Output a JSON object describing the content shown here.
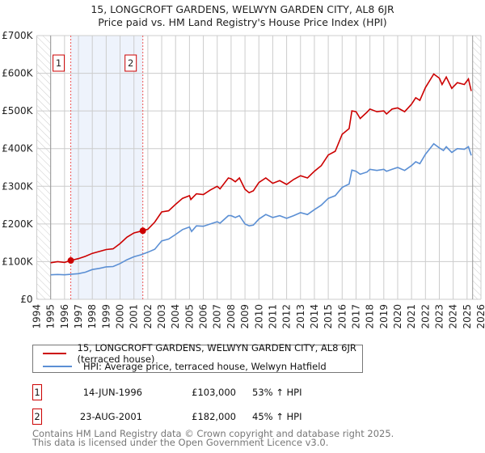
{
  "title_line1": "15, LONGCROFT GARDENS, WELWYN GARDEN CITY, AL8 6JR",
  "title_line2": "Price paid vs. HM Land Registry's House Price Index (HPI)",
  "colors": {
    "property": "#cc0000",
    "hpi": "#5b8fd4",
    "shade": "#eef3fc",
    "grid": "#cccccc"
  },
  "chart_data": {
    "type": "line",
    "title": "15, LONGCROFT GARDENS, WELWYN GARDEN CITY, AL8 6JR — Price paid vs. HM Land Registry's House Price Index (HPI)",
    "xlim": [
      1994,
      2026
    ],
    "ylim": [
      0,
      700000
    ],
    "grid": true,
    "x_ticks": [
      "1994",
      "1995",
      "1996",
      "1997",
      "1998",
      "1999",
      "2000",
      "2001",
      "2002",
      "2003",
      "2004",
      "2005",
      "2006",
      "2007",
      "2008",
      "2009",
      "2010",
      "2011",
      "2012",
      "2013",
      "2014",
      "2015",
      "2016",
      "2017",
      "2018",
      "2019",
      "2020",
      "2021",
      "2022",
      "2023",
      "2024",
      "2025",
      "2026"
    ],
    "y_ticks": [
      {
        "v": 0,
        "label": "£0"
      },
      {
        "v": 100000,
        "label": "£100K"
      },
      {
        "v": 200000,
        "label": "£200K"
      },
      {
        "v": 300000,
        "label": "£300K"
      },
      {
        "v": 400000,
        "label": "£400K"
      },
      {
        "v": 500000,
        "label": "£500K"
      },
      {
        "v": 600000,
        "label": "£600K"
      },
      {
        "v": 700000,
        "label": "£700K"
      }
    ],
    "hatched_ranges": [
      [
        1994,
        1995
      ],
      [
        2025.4,
        2026
      ]
    ],
    "shaded_range": [
      1996.45,
      2001.64
    ],
    "sales": [
      {
        "id": "1",
        "x": 1996.45,
        "y": 103000
      },
      {
        "id": "2",
        "x": 2001.64,
        "y": 182000
      }
    ],
    "series": [
      {
        "name": "15, LONGCROFT GARDENS, WELWYN GARDEN CITY, AL8 6JR (terraced house)",
        "color": "#cc0000",
        "x": [
          1995,
          1995.5,
          1996,
          1996.45,
          1997,
          1997.5,
          1998,
          1998.5,
          1999,
          1999.5,
          2000,
          2000.5,
          2001,
          2001.64,
          2002,
          2002.5,
          2003,
          2003.5,
          2004,
          2004.5,
          2005,
          2005.1,
          2005.5,
          2006,
          2006.5,
          2007,
          2007.2,
          2007.8,
          2008,
          2008.3,
          2008.6,
          2009,
          2009.3,
          2009.6,
          2010,
          2010.5,
          2011,
          2011.5,
          2012,
          2012.5,
          2013,
          2013.5,
          2014,
          2014.5,
          2015,
          2015.5,
          2016,
          2016.5,
          2016.7,
          2017,
          2017.3,
          2017.8,
          2018,
          2018.5,
          2019,
          2019.2,
          2019.6,
          2020,
          2020.5,
          2021,
          2021.3,
          2021.6,
          2022,
          2022.6,
          2023,
          2023.2,
          2023.5,
          2023.9,
          2024.3,
          2024.8,
          2025.1,
          2025.3
        ],
        "y": [
          97000,
          100000,
          98000,
          103000,
          108000,
          114000,
          122000,
          127000,
          132000,
          134000,
          148000,
          165000,
          176000,
          182000,
          186000,
          205000,
          232000,
          235000,
          252000,
          268000,
          275000,
          265000,
          280000,
          278000,
          290000,
          300000,
          293000,
          322000,
          320000,
          312000,
          322000,
          292000,
          283000,
          288000,
          310000,
          322000,
          308000,
          315000,
          305000,
          318000,
          328000,
          322000,
          340000,
          355000,
          383000,
          393000,
          438000,
          453000,
          500000,
          498000,
          480000,
          497000,
          505000,
          498000,
          500000,
          492000,
          505000,
          508000,
          498000,
          518000,
          535000,
          528000,
          562000,
          598000,
          587000,
          570000,
          590000,
          560000,
          575000,
          570000,
          585000,
          553000
        ]
      },
      {
        "name": "HPI: Average price, terraced house, Welwyn Hatfield",
        "color": "#5b8fd4",
        "x": [
          1995,
          1995.5,
          1996,
          1997,
          1997.5,
          1998,
          1998.5,
          1999,
          1999.5,
          2000,
          2000.5,
          2001,
          2001.5,
          2002,
          2002.5,
          2003,
          2003.5,
          2004,
          2004.5,
          2005,
          2005.15,
          2005.5,
          2006,
          2006.5,
          2007,
          2007.2,
          2007.8,
          2008,
          2008.3,
          2008.6,
          2009,
          2009.3,
          2009.6,
          2010,
          2010.5,
          2011,
          2011.5,
          2012,
          2012.5,
          2013,
          2013.5,
          2014,
          2014.5,
          2015,
          2015.5,
          2016,
          2016.5,
          2016.7,
          2017,
          2017.3,
          2017.8,
          2018,
          2018.5,
          2019,
          2019.2,
          2019.6,
          2020,
          2020.5,
          2021,
          2021.3,
          2021.6,
          2022,
          2022.6,
          2023,
          2023.3,
          2023.5,
          2023.9,
          2024.3,
          2024.8,
          2025.1,
          2025.3
        ],
        "y": [
          65000,
          66000,
          65000,
          68000,
          72000,
          79000,
          82000,
          86000,
          87000,
          95000,
          105000,
          113000,
          118000,
          125000,
          133000,
          155000,
          160000,
          172000,
          185000,
          192000,
          180000,
          195000,
          194000,
          200000,
          206000,
          202000,
          222000,
          222000,
          217000,
          222000,
          200000,
          195000,
          197000,
          213000,
          225000,
          217000,
          222000,
          215000,
          222000,
          230000,
          225000,
          238000,
          250000,
          268000,
          275000,
          297000,
          306000,
          343000,
          340000,
          332000,
          338000,
          345000,
          342000,
          345000,
          340000,
          345000,
          350000,
          342000,
          355000,
          365000,
          360000,
          385000,
          413000,
          402000,
          395000,
          405000,
          390000,
          400000,
          398000,
          405000,
          382000
        ]
      }
    ]
  },
  "legend": {
    "property_label": "15, LONGCROFT GARDENS, WELWYN GARDEN CITY, AL8 6JR (terraced house)",
    "hpi_label": "HPI: Average price, terraced house, Welwyn Hatfield"
  },
  "transactions": [
    {
      "num": "1",
      "date": "14-JUN-1996",
      "price": "£103,000",
      "hpi": "53% ↑ HPI"
    },
    {
      "num": "2",
      "date": "23-AUG-2001",
      "price": "£182,000",
      "hpi": "45% ↑ HPI"
    }
  ],
  "footer": {
    "line1": "Contains HM Land Registry data © Crown copyright and database right 2025.",
    "line2": "This data is licensed under the Open Government Licence v3.0."
  }
}
